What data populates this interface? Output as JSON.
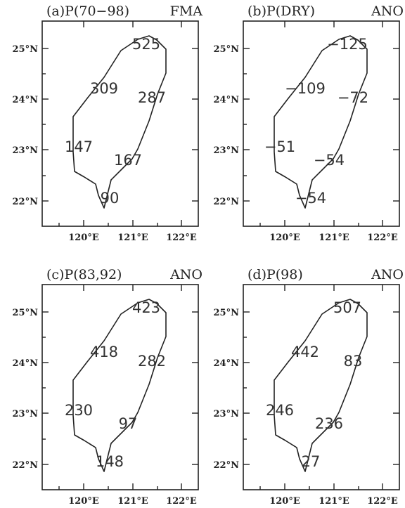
{
  "xticks": [
    "120°E",
    "121°E",
    "122°E"
  ],
  "yticks": [
    "25°N",
    "24°N",
    "23°N",
    "22°N"
  ],
  "panels": [
    {
      "title_left": "(a)P(70−98)",
      "title_right": "FMA",
      "values": [
        {
          "site": "north",
          "text": "525"
        },
        {
          "site": "northwest",
          "text": "309"
        },
        {
          "site": "east",
          "text": "287"
        },
        {
          "site": "west",
          "text": "147"
        },
        {
          "site": "southeast",
          "text": "167"
        },
        {
          "site": "south",
          "text": "90"
        }
      ]
    },
    {
      "title_left": "(b)P(DRY)",
      "title_right": "ANO",
      "values": [
        {
          "site": "north",
          "text": "−125"
        },
        {
          "site": "northwest",
          "text": "−109"
        },
        {
          "site": "east",
          "text": "−72"
        },
        {
          "site": "west",
          "text": "−51"
        },
        {
          "site": "southeast",
          "text": "−54"
        },
        {
          "site": "south",
          "text": "−54"
        }
      ]
    },
    {
      "title_left": "(c)P(83,92)",
      "title_right": "ANO",
      "values": [
        {
          "site": "north",
          "text": "423"
        },
        {
          "site": "northwest",
          "text": "418"
        },
        {
          "site": "east",
          "text": "282"
        },
        {
          "site": "west",
          "text": "230"
        },
        {
          "site": "southeast",
          "text": "97"
        },
        {
          "site": "south",
          "text": "148"
        }
      ]
    },
    {
      "title_left": "(d)P(98)",
      "title_right": "ANO",
      "values": [
        {
          "site": "north",
          "text": "507"
        },
        {
          "site": "northwest",
          "text": "442"
        },
        {
          "site": "east",
          "text": "83"
        },
        {
          "site": "west",
          "text": "246"
        },
        {
          "site": "southeast",
          "text": "236"
        },
        {
          "site": "south",
          "text": "27"
        }
      ]
    }
  ]
}
